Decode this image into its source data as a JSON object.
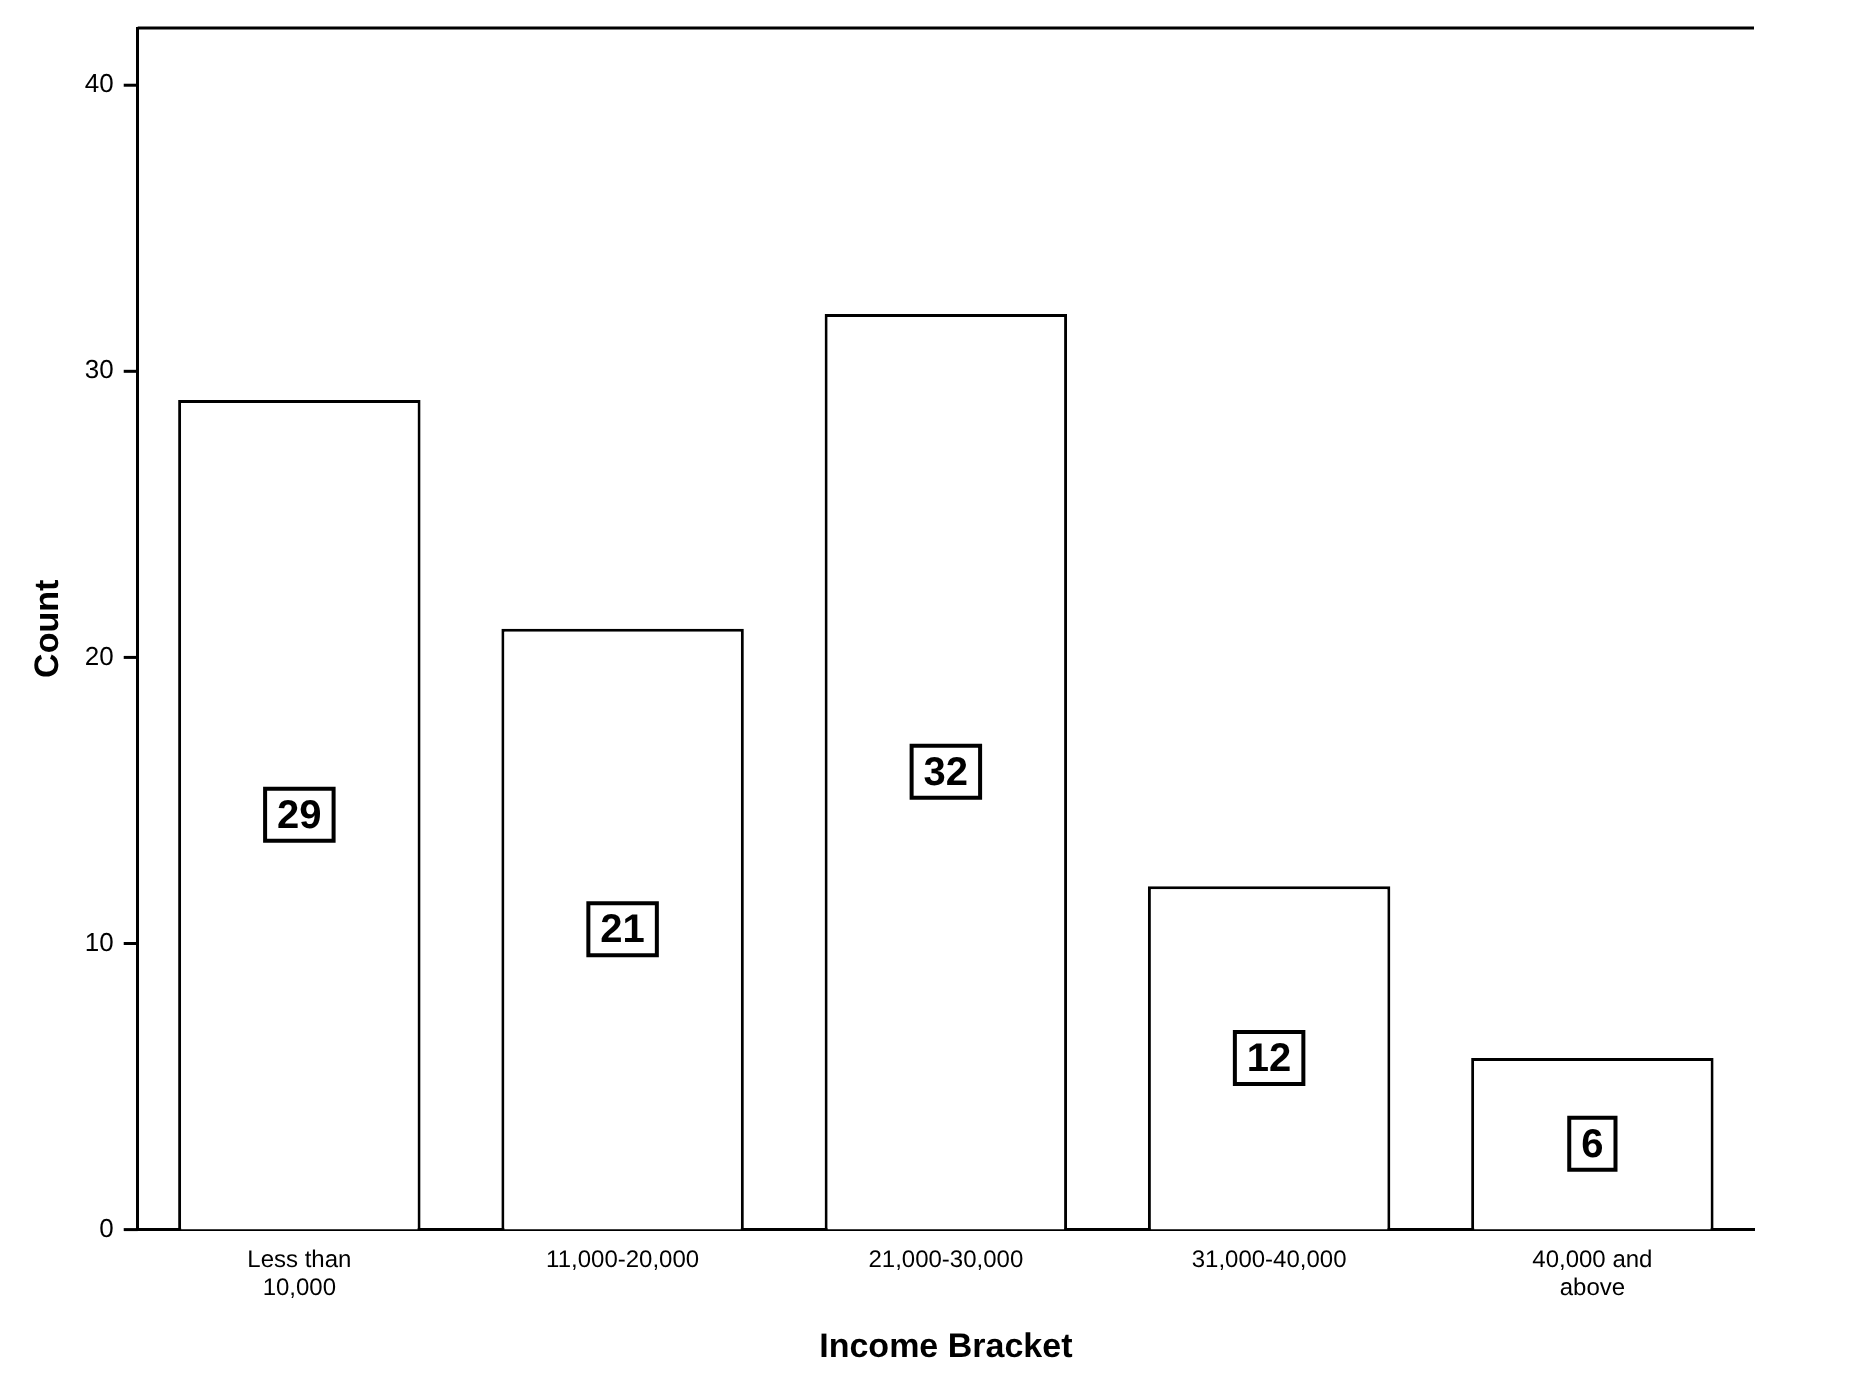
{
  "chart_data": {
    "type": "bar",
    "xlabel": "Income Bracket",
    "ylabel": "Count",
    "categories": [
      "Less than\n10,000",
      "11,000-20,000",
      "21,000-30,000",
      "31,000-40,000",
      "40,000 and\nabove"
    ],
    "values": [
      29,
      21,
      32,
      12,
      6
    ],
    "color": "#ffffff",
    "ylim": [
      0,
      42
    ],
    "yticks": [
      0,
      10,
      20,
      30,
      40
    ],
    "grid": false,
    "legend": false,
    "data_labels": true
  }
}
